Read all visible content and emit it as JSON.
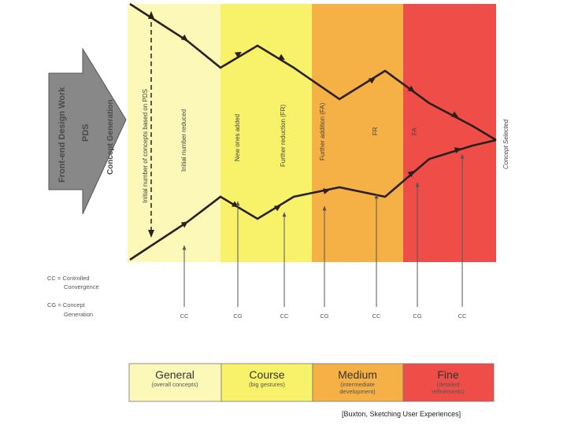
{
  "diagram": {
    "arrow": {
      "line1": "Front-end Design Work",
      "line2": "PDS",
      "line3": "Concept Generation"
    },
    "zone_colors": [
      "#fbf8b8",
      "#f8f26a",
      "#f5b145",
      "#ee4d48"
    ],
    "rotated_labels": [
      "Initial number of concepts based on PDS",
      "Initial number reduced",
      "New ones added",
      "Further reduction (FR)",
      "Further addition (FA)",
      "FR",
      "FA",
      "Concept Selected"
    ],
    "phases": [
      "CC",
      "CG",
      "CC",
      "CG",
      "CC",
      "CG",
      "CC"
    ],
    "legend": {
      "cc_line1": "CC = Controlled",
      "cc_line2": "Convergence",
      "cg_line1": "CG = Concept",
      "cg_line2": "Generation"
    }
  },
  "bands": [
    {
      "title": "General",
      "sub1": "(overall concepts)",
      "sub2": ""
    },
    {
      "title": "Course",
      "sub1": "(big gestures)",
      "sub2": ""
    },
    {
      "title": "Medium",
      "sub1": "(intermediate",
      "sub2": "development)"
    },
    {
      "title": "Fine",
      "sub1": "(detailed",
      "sub2": "refinements)"
    }
  ],
  "caption": "[Buxton, Sketching User Experiences]"
}
